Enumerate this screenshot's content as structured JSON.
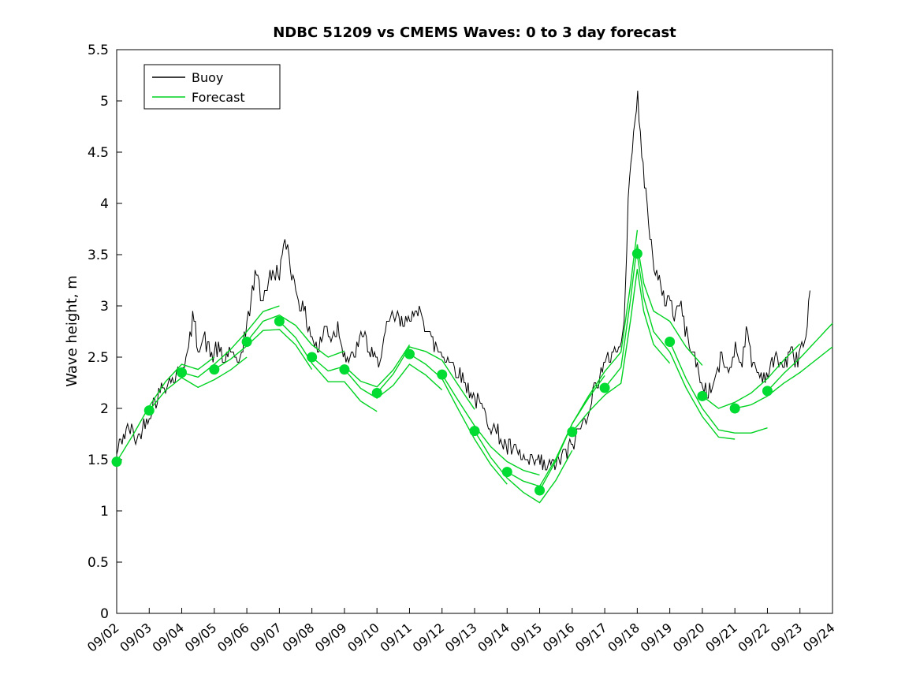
{
  "figure": {
    "title": "NDBC 51209 vs CMEMS Waves: 0 to 3 day forecast",
    "ylabel": "Wave height, m"
  },
  "colors": {
    "background": "#ffffff",
    "axis": "#000000",
    "buoy": "#000000",
    "forecast": "#00d221",
    "dot": "#00dc32",
    "text": "#000000"
  },
  "legend": {
    "entries": [
      {
        "label": "Buoy",
        "color": "#000000"
      },
      {
        "label": "Forecast",
        "color": "#00d221"
      }
    ]
  },
  "chart_data": {
    "type": "line",
    "title": "NDBC 51209 vs CMEMS Waves: 0 to 3 day forecast",
    "xlabel": "",
    "ylabel": "Wave height, m",
    "ylim": [
      0,
      5.5
    ],
    "ytick_values": [
      0,
      0.5,
      1,
      1.5,
      2,
      2.5,
      3,
      3.5,
      4,
      4.5,
      5,
      5.5
    ],
    "ytick_labels": [
      "0",
      "0.5",
      "1",
      "1.5",
      "2",
      "2.5",
      "3",
      "3.5",
      "4",
      "4.5",
      "5",
      "5.5"
    ],
    "x_tick_labels": [
      "09/02",
      "09/03",
      "09/04",
      "09/05",
      "09/06",
      "09/07",
      "09/08",
      "09/09",
      "09/10",
      "09/11",
      "09/12",
      "09/13",
      "09/14",
      "09/15",
      "09/16",
      "09/17",
      "09/18",
      "09/19",
      "09/20",
      "09/21",
      "09/22",
      "09/23",
      "09/24"
    ],
    "x_range_days": [
      0,
      22
    ],
    "legend": [
      "Buoy",
      "Forecast"
    ],
    "legend_position": "northwest",
    "grid": false,
    "series": [
      {
        "name": "Buoy",
        "type": "noisy-line",
        "color": "#000000"
      },
      {
        "name": "Forecast",
        "type": "ensemble-line",
        "color": "#00d221"
      }
    ],
    "buoy_keypoints": [
      [
        0,
        1.55
      ],
      [
        0.2,
        1.75
      ],
      [
        0.4,
        1.8
      ],
      [
        0.6,
        1.7
      ],
      [
        0.8,
        1.8
      ],
      [
        1.0,
        1.95
      ],
      [
        1.2,
        2.1
      ],
      [
        1.5,
        2.25
      ],
      [
        1.8,
        2.3
      ],
      [
        2.0,
        2.4
      ],
      [
        2.2,
        2.55
      ],
      [
        2.35,
        2.9
      ],
      [
        2.5,
        2.6
      ],
      [
        2.7,
        2.7
      ],
      [
        2.9,
        2.5
      ],
      [
        3.1,
        2.6
      ],
      [
        3.3,
        2.45
      ],
      [
        3.5,
        2.6
      ],
      [
        3.7,
        2.35
      ],
      [
        3.85,
        2.6
      ],
      [
        4.0,
        2.8
      ],
      [
        4.15,
        3.1
      ],
      [
        4.3,
        3.35
      ],
      [
        4.45,
        3.05
      ],
      [
        4.6,
        3.2
      ],
      [
        4.8,
        3.3
      ],
      [
        5.0,
        3.35
      ],
      [
        5.15,
        3.55
      ],
      [
        5.25,
        3.6
      ],
      [
        5.4,
        3.3
      ],
      [
        5.6,
        3.05
      ],
      [
        5.8,
        2.9
      ],
      [
        6.0,
        2.7
      ],
      [
        6.2,
        2.55
      ],
      [
        6.4,
        2.8
      ],
      [
        6.6,
        2.7
      ],
      [
        6.8,
        2.8
      ],
      [
        7.0,
        2.55
      ],
      [
        7.2,
        2.45
      ],
      [
        7.4,
        2.6
      ],
      [
        7.6,
        2.75
      ],
      [
        7.8,
        2.5
      ],
      [
        8.0,
        2.45
      ],
      [
        8.2,
        2.65
      ],
      [
        8.4,
        2.85
      ],
      [
        8.6,
        2.9
      ],
      [
        8.8,
        2.8
      ],
      [
        9.0,
        2.95
      ],
      [
        9.2,
        2.85
      ],
      [
        9.35,
        3.0
      ],
      [
        9.5,
        2.8
      ],
      [
        9.7,
        2.65
      ],
      [
        9.9,
        2.55
      ],
      [
        10.1,
        2.5
      ],
      [
        10.3,
        2.45
      ],
      [
        10.5,
        2.35
      ],
      [
        10.7,
        2.25
      ],
      [
        10.9,
        2.15
      ],
      [
        11.1,
        2.05
      ],
      [
        11.3,
        1.95
      ],
      [
        11.5,
        1.85
      ],
      [
        11.7,
        1.75
      ],
      [
        11.9,
        1.65
      ],
      [
        12.1,
        1.6
      ],
      [
        12.3,
        1.55
      ],
      [
        12.5,
        1.5
      ],
      [
        12.7,
        1.45
      ],
      [
        12.9,
        1.5
      ],
      [
        13.1,
        1.45
      ],
      [
        13.3,
        1.42
      ],
      [
        13.5,
        1.48
      ],
      [
        13.7,
        1.52
      ],
      [
        13.9,
        1.6
      ],
      [
        14.1,
        1.7
      ],
      [
        14.3,
        1.85
      ],
      [
        14.5,
        2.0
      ],
      [
        14.7,
        2.2
      ],
      [
        14.85,
        2.35
      ],
      [
        15.0,
        2.4
      ],
      [
        15.15,
        2.5
      ],
      [
        15.3,
        2.6
      ],
      [
        15.45,
        2.55
      ],
      [
        15.55,
        2.7
      ],
      [
        15.65,
        3.2
      ],
      [
        15.75,
        4.3
      ],
      [
        15.85,
        4.6
      ],
      [
        15.95,
        4.9
      ],
      [
        16.0,
        5.05
      ],
      [
        16.1,
        4.6
      ],
      [
        16.2,
        4.3
      ],
      [
        16.35,
        3.8
      ],
      [
        16.5,
        3.45
      ],
      [
        16.65,
        3.25
      ],
      [
        16.8,
        3.05
      ],
      [
        17.0,
        3.1
      ],
      [
        17.15,
        2.9
      ],
      [
        17.3,
        3.05
      ],
      [
        17.45,
        2.8
      ],
      [
        17.6,
        2.65
      ],
      [
        17.8,
        2.45
      ],
      [
        18.0,
        2.2
      ],
      [
        18.2,
        2.15
      ],
      [
        18.4,
        2.3
      ],
      [
        18.6,
        2.5
      ],
      [
        18.8,
        2.35
      ],
      [
        19.0,
        2.6
      ],
      [
        19.2,
        2.45
      ],
      [
        19.35,
        2.75
      ],
      [
        19.5,
        2.5
      ],
      [
        19.7,
        2.35
      ],
      [
        19.9,
        2.3
      ],
      [
        20.1,
        2.4
      ],
      [
        20.3,
        2.5
      ],
      [
        20.5,
        2.4
      ],
      [
        20.7,
        2.55
      ],
      [
        20.9,
        2.45
      ],
      [
        21.0,
        2.6
      ],
      [
        21.1,
        2.6
      ],
      [
        21.2,
        2.65
      ],
      [
        21.28,
        3.05
      ],
      [
        21.35,
        3.05
      ]
    ],
    "buoy_noise": {
      "amplitude": 0.09,
      "quantize": 0.05,
      "seed": 42,
      "step_days": 0.0417,
      "end_day": 21.35
    },
    "forecast_base": [
      [
        0,
        1.48
      ],
      [
        0.5,
        1.72
      ],
      [
        1,
        1.98
      ],
      [
        1.5,
        2.2
      ],
      [
        2,
        2.35
      ],
      [
        2.5,
        2.28
      ],
      [
        3,
        2.38
      ],
      [
        3.5,
        2.5
      ],
      [
        4,
        2.65
      ],
      [
        4.5,
        2.82
      ],
      [
        5,
        2.85
      ],
      [
        5.5,
        2.72
      ],
      [
        6,
        2.5
      ],
      [
        6.5,
        2.35
      ],
      [
        7,
        2.38
      ],
      [
        7.5,
        2.22
      ],
      [
        8,
        2.15
      ],
      [
        8.5,
        2.3
      ],
      [
        9,
        2.53
      ],
      [
        9.5,
        2.45
      ],
      [
        10,
        2.33
      ],
      [
        10.5,
        2.05
      ],
      [
        11,
        1.78
      ],
      [
        11.5,
        1.55
      ],
      [
        12,
        1.38
      ],
      [
        12.5,
        1.27
      ],
      [
        13,
        1.2
      ],
      [
        13.5,
        1.45
      ],
      [
        14,
        1.77
      ],
      [
        14.5,
        2.0
      ],
      [
        15,
        2.2
      ],
      [
        15.5,
        2.35
      ],
      [
        15.8,
        3.0
      ],
      [
        16,
        3.5
      ],
      [
        16.2,
        3.1
      ],
      [
        16.5,
        2.8
      ],
      [
        17,
        2.65
      ],
      [
        17.5,
        2.35
      ],
      [
        18,
        2.12
      ],
      [
        18.5,
        1.97
      ],
      [
        19,
        2.0
      ],
      [
        19.5,
        2.06
      ],
      [
        20,
        2.17
      ],
      [
        20.5,
        2.32
      ],
      [
        21,
        2.45
      ],
      [
        21.5,
        2.6
      ],
      [
        22,
        2.75
      ]
    ],
    "forecast_issue_days": [
      0,
      1,
      2,
      3,
      4,
      5,
      6,
      7,
      8,
      9,
      10,
      11,
      12,
      13,
      14,
      15,
      16,
      17,
      18,
      19,
      20
    ],
    "forecast_horizon_days": 3,
    "forecast_spreads": [
      0.04,
      -0.05,
      0.05,
      -0.04,
      0.06,
      -0.06,
      0.03,
      -0.05,
      0.07,
      -0.04,
      0.05,
      -0.06,
      0.04,
      0.08,
      -0.07,
      0.1,
      -0.1,
      -0.12,
      0.06,
      -0.05,
      0.04
    ],
    "forecast_dots": [
      [
        0,
        1.48
      ],
      [
        1,
        1.98
      ],
      [
        2,
        2.35
      ],
      [
        3,
        2.38
      ],
      [
        4,
        2.65
      ],
      [
        5,
        2.85
      ],
      [
        6,
        2.5
      ],
      [
        7,
        2.38
      ],
      [
        8,
        2.15
      ],
      [
        9,
        2.53
      ],
      [
        10,
        2.33
      ],
      [
        11,
        1.78
      ],
      [
        12,
        1.38
      ],
      [
        13,
        1.2
      ],
      [
        14,
        1.77
      ],
      [
        15,
        2.2
      ],
      [
        16,
        3.51
      ],
      [
        17,
        2.65
      ],
      [
        18,
        2.12
      ],
      [
        19,
        2.0
      ],
      [
        20,
        2.17
      ]
    ]
  }
}
